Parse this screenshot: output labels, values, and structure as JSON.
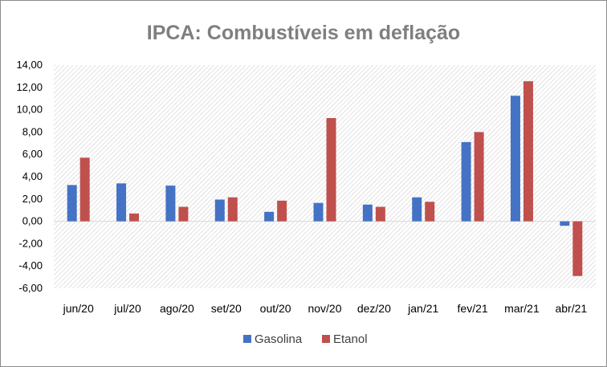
{
  "chart_data": {
    "type": "bar",
    "title": "IPCA: Combustíveis em deflação",
    "xlabel": "",
    "ylabel": "",
    "categories": [
      "jun/20",
      "jul/20",
      "ago/20",
      "set/20",
      "out/20",
      "nov/20",
      "dez/20",
      "jan/21",
      "fev/21",
      "mar/21",
      "abr/21"
    ],
    "series": [
      {
        "name": "Gasolina",
        "color": "#4472c4",
        "values": [
          3.25,
          3.4,
          3.2,
          1.95,
          0.85,
          1.65,
          1.5,
          2.15,
          7.1,
          11.25,
          -0.4
        ]
      },
      {
        "name": "Etanol",
        "color": "#c0504d",
        "values": [
          5.7,
          0.7,
          1.3,
          2.15,
          1.85,
          9.25,
          1.3,
          1.75,
          8.0,
          12.55,
          -4.9
        ]
      }
    ],
    "ylim": [
      -6,
      14
    ],
    "yticks": [
      -6,
      -4,
      -2,
      0,
      2,
      4,
      6,
      8,
      10,
      12,
      14
    ],
    "ytick_labels": [
      "-6,00",
      "-4,00",
      "-2,00",
      "0,00",
      "2,00",
      "4,00",
      "6,00",
      "8,00",
      "10,00",
      "12,00",
      "14,00"
    ],
    "legend_position": "bottom",
    "background": "hatched"
  }
}
